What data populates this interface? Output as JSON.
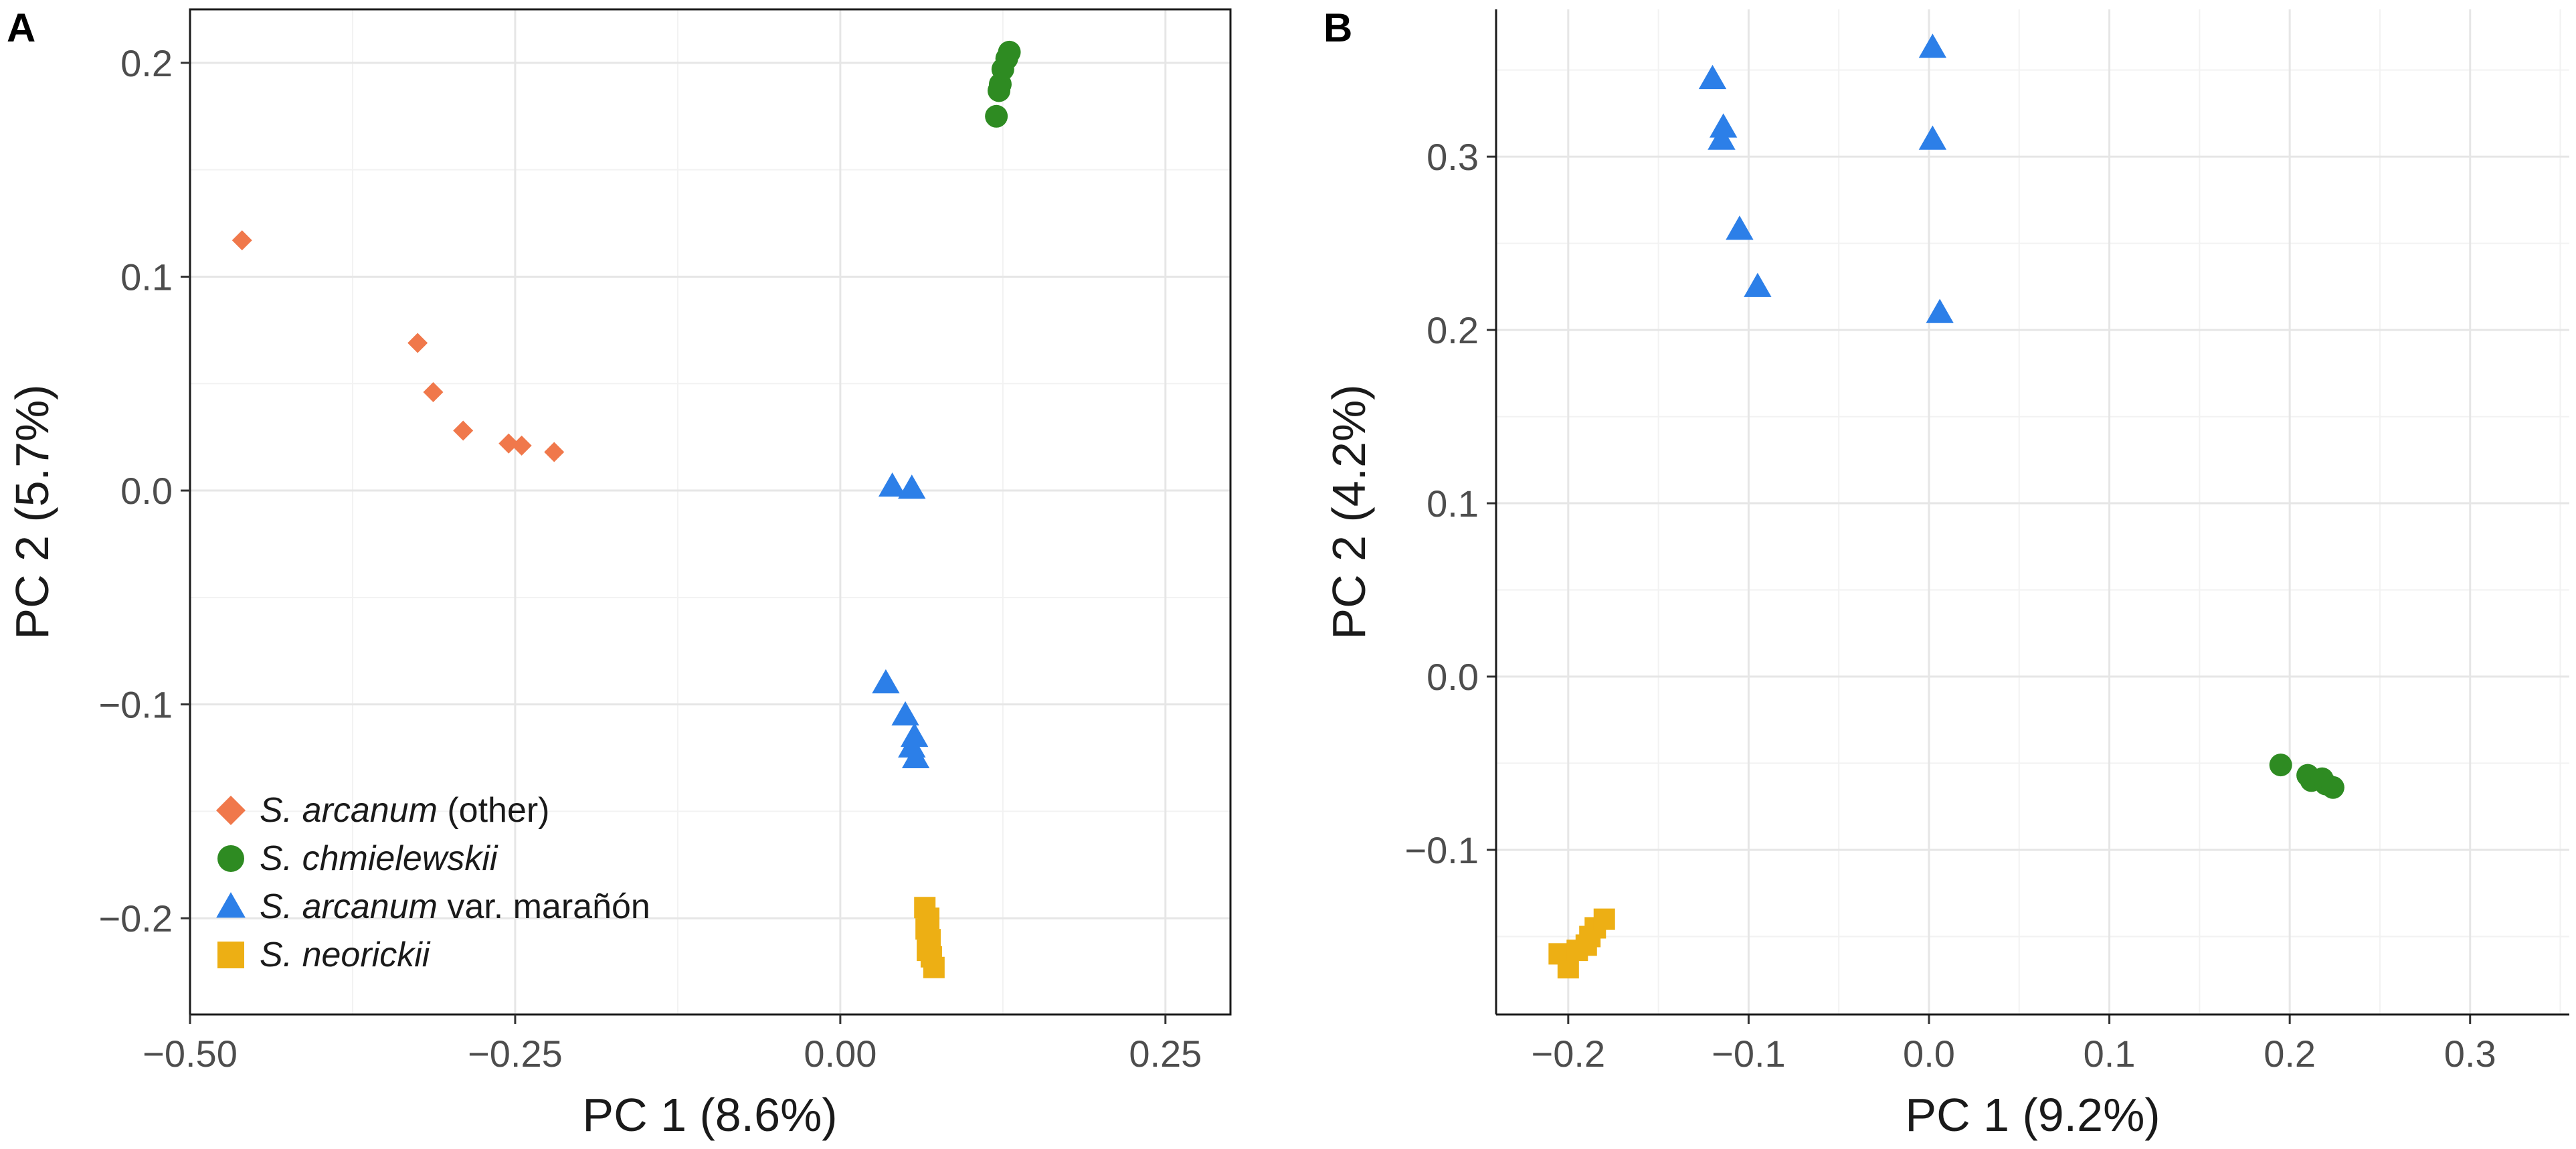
{
  "colors": {
    "arcanum_other": "#F0784B",
    "chmielewskii": "#2E8B22",
    "maranon": "#2C7FE8",
    "neorickii": "#EDAF14"
  },
  "chart_data": [
    {
      "panel": "A",
      "type": "scatter",
      "xlabel": "PC 1 (8.6%)",
      "ylabel": "PC 2 (5.7%)",
      "xlim": [
        -0.5,
        0.3
      ],
      "ylim": [
        -0.245,
        0.225
      ],
      "xticks": [
        -0.5,
        -0.25,
        0.0,
        0.25
      ],
      "xtick_labels": [
        "−0.50",
        "−0.25",
        "0.00",
        "0.25"
      ],
      "yticks": [
        -0.2,
        -0.1,
        0.0,
        0.1,
        0.2
      ],
      "ytick_labels": [
        "−0.2",
        "−0.1",
        "0.0",
        "0.1",
        "0.2"
      ],
      "legend_position": "bottom-left",
      "series": [
        {
          "key": "arcanum_other",
          "name_italic": "S. arcanum",
          "name_rest": " (other)",
          "marker": "diamond",
          "points": [
            [
              -0.46,
              0.117
            ],
            [
              -0.325,
              0.069
            ],
            [
              -0.313,
              0.046
            ],
            [
              -0.29,
              0.028
            ],
            [
              -0.255,
              0.022
            ],
            [
              -0.245,
              0.021
            ],
            [
              -0.22,
              0.018
            ]
          ]
        },
        {
          "key": "chmielewskii",
          "name_italic": "S. chmielewskii",
          "name_rest": "",
          "marker": "circle",
          "points": [
            [
              0.13,
              0.205
            ],
            [
              0.128,
              0.202
            ],
            [
              0.125,
              0.197
            ],
            [
              0.123,
              0.19
            ],
            [
              0.122,
              0.187
            ],
            [
              0.12,
              0.175
            ]
          ]
        },
        {
          "key": "maranon",
          "name_italic": "S. arcanum",
          "name_rest": " var. marañón",
          "marker": "triangle",
          "points": [
            [
              0.04,
              0.002
            ],
            [
              0.055,
              0.001
            ],
            [
              0.035,
              -0.09
            ],
            [
              0.05,
              -0.105
            ],
            [
              0.057,
              -0.115
            ],
            [
              0.055,
              -0.12
            ],
            [
              0.058,
              -0.125
            ]
          ]
        },
        {
          "key": "neorickii",
          "name_italic": "S. neorickii",
          "name_rest": "",
          "marker": "square",
          "points": [
            [
              0.065,
              -0.195
            ],
            [
              0.068,
              -0.2
            ],
            [
              0.066,
              -0.205
            ],
            [
              0.069,
              -0.21
            ],
            [
              0.067,
              -0.215
            ],
            [
              0.07,
              -0.218
            ],
            [
              0.072,
              -0.223
            ]
          ]
        }
      ]
    },
    {
      "panel": "B",
      "type": "scatter",
      "xlabel": "PC 1 (9.2%)",
      "ylabel": "PC 2 (4.2%)",
      "xlim": [
        -0.24,
        0.355
      ],
      "ylim": [
        -0.195,
        0.385
      ],
      "xticks": [
        -0.2,
        -0.1,
        0.0,
        0.1,
        0.2,
        0.3
      ],
      "xtick_labels": [
        "−0.2",
        "−0.1",
        "0.0",
        "0.1",
        "0.2",
        "0.3"
      ],
      "yticks": [
        -0.1,
        0.0,
        0.1,
        0.2,
        0.3
      ],
      "ytick_labels": [
        "−0.1",
        "0.0",
        "0.1",
        "0.2",
        "0.3"
      ],
      "series": [
        {
          "key": "maranon",
          "marker": "triangle",
          "points": [
            [
              -0.12,
              0.345
            ],
            [
              -0.114,
              0.317
            ],
            [
              -0.115,
              0.31
            ],
            [
              -0.105,
              0.258
            ],
            [
              -0.095,
              0.225
            ],
            [
              0.002,
              0.363
            ],
            [
              0.002,
              0.31
            ],
            [
              0.006,
              0.21
            ]
          ]
        },
        {
          "key": "chmielewskii",
          "marker": "circle",
          "points": [
            [
              0.195,
              -0.051
            ],
            [
              0.21,
              -0.057
            ],
            [
              0.212,
              -0.06
            ],
            [
              0.218,
              -0.059
            ],
            [
              0.22,
              -0.062
            ],
            [
              0.224,
              -0.064
            ]
          ]
        },
        {
          "key": "neorickii",
          "marker": "square",
          "points": [
            [
              -0.205,
              -0.16
            ],
            [
              -0.2,
              -0.168
            ],
            [
              -0.195,
              -0.158
            ],
            [
              -0.19,
              -0.155
            ],
            [
              -0.188,
              -0.15
            ],
            [
              -0.185,
              -0.145
            ],
            [
              -0.18,
              -0.14
            ]
          ]
        }
      ]
    }
  ]
}
